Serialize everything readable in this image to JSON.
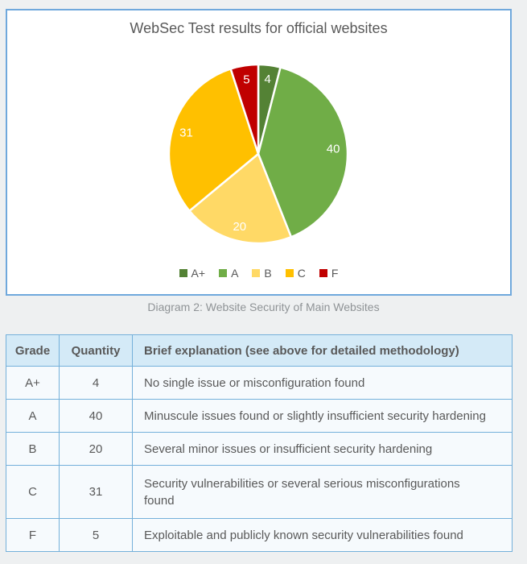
{
  "chart_data": {
    "type": "pie",
    "title": "WebSec Test results for official websites",
    "categories": [
      "A+",
      "A",
      "B",
      "C",
      "F"
    ],
    "values": [
      4,
      40,
      20,
      31,
      5
    ],
    "colors": [
      "#548235",
      "#70ad47",
      "#ffd966",
      "#ffc000",
      "#c00000"
    ],
    "data_label_color": "#ffffff",
    "start_angle_deg": 0,
    "direction": "clockwise",
    "legend_position": "bottom",
    "legend_entries": [
      "A+",
      "A",
      "B",
      "C",
      "F"
    ]
  },
  "caption": "Diagram 2: Website Security of Main Websites",
  "table": {
    "headers": [
      "Grade",
      "Quantity",
      "Brief explanation (see above for detailed methodology)"
    ],
    "rows": [
      {
        "grade": "A+",
        "quantity": "4",
        "explanation": "No single issue or misconfiguration found"
      },
      {
        "grade": "A",
        "quantity": "40",
        "explanation": "Minuscule issues found or slightly insufficient security hardening"
      },
      {
        "grade": "B",
        "quantity": "20",
        "explanation": "Several minor issues or insufficient security hardening"
      },
      {
        "grade": "C",
        "quantity": "31",
        "explanation": "Security vulnerabilities or several serious misconfigurations found"
      },
      {
        "grade": "F",
        "quantity": "5",
        "explanation": "Exploitable and publicly known security vulnerabilities found"
      }
    ]
  }
}
